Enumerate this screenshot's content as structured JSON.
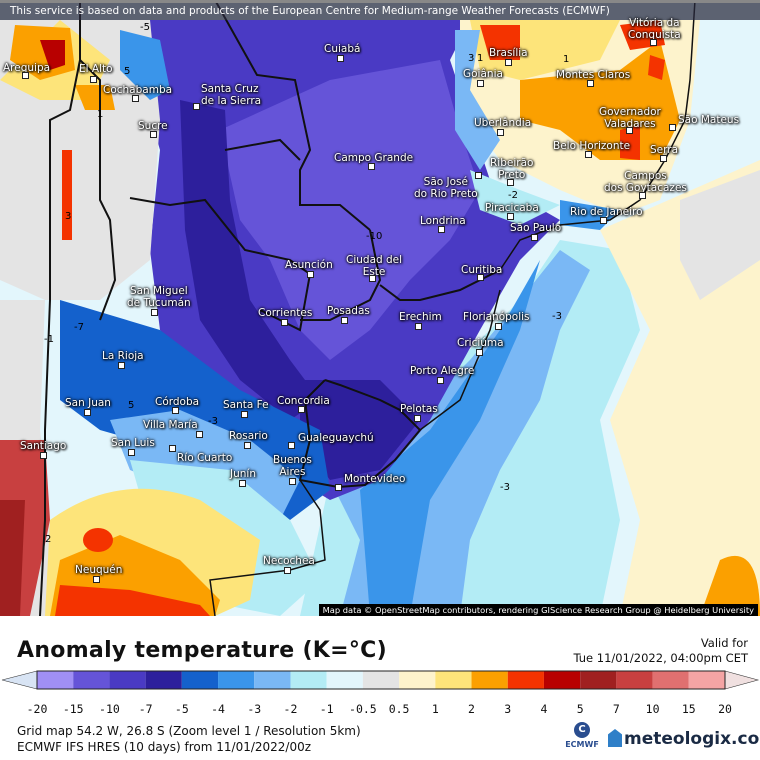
{
  "banner": "This service is based on data and products of the European Centre for Medium-range Weather Forecasts (ECMWF)",
  "attribution": "Map data © OpenStreetMap contributors, rendering GIScience Research Group @ Heidelberg University",
  "cities": {
    "arequipa": "Arequipa",
    "el_alto": "El Alto",
    "cochabamba": "Cochabamba",
    "sucre": "Sucre",
    "santa_cruz": "Santa Cruz\nde la Sierra",
    "cuiaba": "Cuiabá",
    "campo_grande": "Campo Grande",
    "asuncion": "Asunción",
    "ciudad_del_este": "Ciudad del\nEste",
    "brasilia": "Brasília",
    "goiania": "Goiânia",
    "montes_claros": "Montes Claros",
    "vitoria": "Vitória da\nConquista",
    "governador": "Governador\nValadares",
    "sao_mateus": "São Mateus",
    "uberlandia": "Uberlândia",
    "belo_horizonte": "Belo Horizonte",
    "serra": "Serra",
    "ribeirao": "Ribeirão\nPreto",
    "sao_jose": "São José\ndo Rio Preto",
    "campos": "Campos\ndos Goytacazes",
    "piracicaba": "Piracicaba",
    "rio": "Rio de Janeiro",
    "londrina": "Londrina",
    "sao_paulo": "São Paulo",
    "curitiba": "Curitiba",
    "florianopolis": "Florianópolis",
    "erechim": "Erechim",
    "criciuma": "Criciúma",
    "porto_alegre": "Porto Alegre",
    "pelotas": "Pelotas",
    "tucuman": "San Miguel\nde Tucumán",
    "corrientes": "Corrientes",
    "posadas": "Posadas",
    "la_rioja": "La Rioja",
    "san_juan": "San Juan",
    "cordoba": "Córdoba",
    "santa_fe": "Santa Fe",
    "concordia": "Concordia",
    "villa_maria": "Villa María",
    "santiago": "Santiago",
    "san_luis": "San Luis",
    "rosario": "Rosario",
    "gualeguaychu": "Gualeguaychú",
    "rio_cuarto": "Río Cuarto",
    "junin": "Junín",
    "buenos_aires": "Buenos\nAires",
    "montevideo": "Montevideo",
    "necochea": "Necochea",
    "neuquen": "Neuquén"
  },
  "contour_labels": [
    "-5",
    "5",
    "1",
    "3",
    "-1",
    "-7",
    "5",
    "-3",
    "2",
    "-10",
    "-2",
    "-3",
    "-3",
    "3",
    "1",
    "1"
  ],
  "legend": {
    "title": "Anomaly temperature (K=°C)",
    "valid_label": "Valid for",
    "valid_time": "Tue 11/01/2022, 04:00pm CET",
    "labels": [
      "-20",
      "-15",
      "-10",
      "-7",
      "-5",
      "-4",
      "-3",
      "-2",
      "-1",
      "-0.5",
      "0.5",
      "1",
      "2",
      "3",
      "4",
      "5",
      "7",
      "10",
      "15",
      "20"
    ],
    "colors": [
      "#a08ff5",
      "#6554d8",
      "#4a3ac4",
      "#2d1f9c",
      "#1461cc",
      "#3a95ea",
      "#7ab8f5",
      "#b3ecf5",
      "#e3f6fc",
      "#e4e4e4",
      "#fdf3cc",
      "#fde47a",
      "#fba000",
      "#f43300",
      "#b80000",
      "#a02020",
      "#c84040",
      "#e07070",
      "#f4a4a4"
    ],
    "under_color": "#d8e4f4",
    "over_color": "#f0e0e0"
  },
  "info": {
    "grid": "Grid map 54.2 W, 26.8 S (Zoom level 1 / Resolution 5km)",
    "model": "ECMWF IFS HRES (10 days) from 11/01/2022/00z"
  },
  "logos": {
    "ecmwf": "ECMWF",
    "meteologix": "meteologix.com"
  }
}
